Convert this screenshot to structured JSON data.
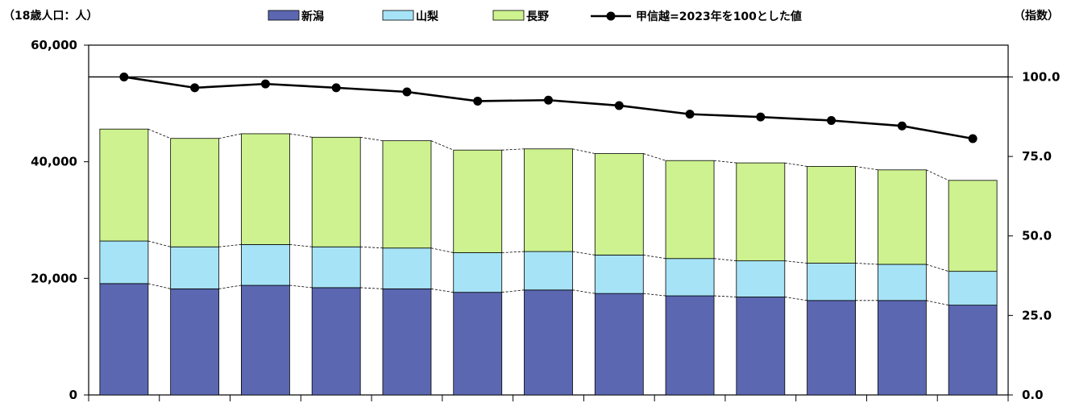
{
  "chart_data": {
    "type": "bar",
    "stacked": true,
    "left_axis_unit_label": "（18歳人口：人）",
    "right_axis_unit_label": "（指数）",
    "yticks_left": [
      "60,000",
      "40,000",
      "20,000",
      "0"
    ],
    "yticks_right": [
      "100.0",
      "75.0",
      "50.0",
      "25.0",
      "0.0"
    ],
    "ylim_left": [
      0,
      60000
    ],
    "ylim_right": [
      0,
      110
    ],
    "grid": false,
    "legend_position": "top",
    "series": [
      {
        "name": "新潟",
        "color": "#5b67b1",
        "values": [
          19100,
          18200,
          18800,
          18400,
          18200,
          17600,
          18000,
          17400,
          17000,
          16800,
          16200,
          16200,
          15400
        ]
      },
      {
        "name": "山梨",
        "color": "#a6e3f7",
        "values": [
          7300,
          7200,
          7000,
          7000,
          7000,
          6800,
          6600,
          6600,
          6400,
          6200,
          6400,
          6200,
          5800
        ]
      },
      {
        "name": "長野",
        "color": "#cdf28f",
        "values": [
          19200,
          18600,
          19000,
          18800,
          18400,
          17600,
          17600,
          17400,
          16800,
          16800,
          16600,
          16200,
          15600
        ]
      }
    ],
    "line_series": {
      "name": "甲信越=2023年を100とした値",
      "color": "#000000",
      "axis": "right",
      "values": [
        100.0,
        96.6,
        97.8,
        96.6,
        95.3,
        92.4,
        92.7,
        91.0,
        88.3,
        87.4,
        86.3,
        84.6,
        80.6
      ]
    },
    "reference_line": {
      "axis": "right",
      "value": 100.0
    }
  }
}
